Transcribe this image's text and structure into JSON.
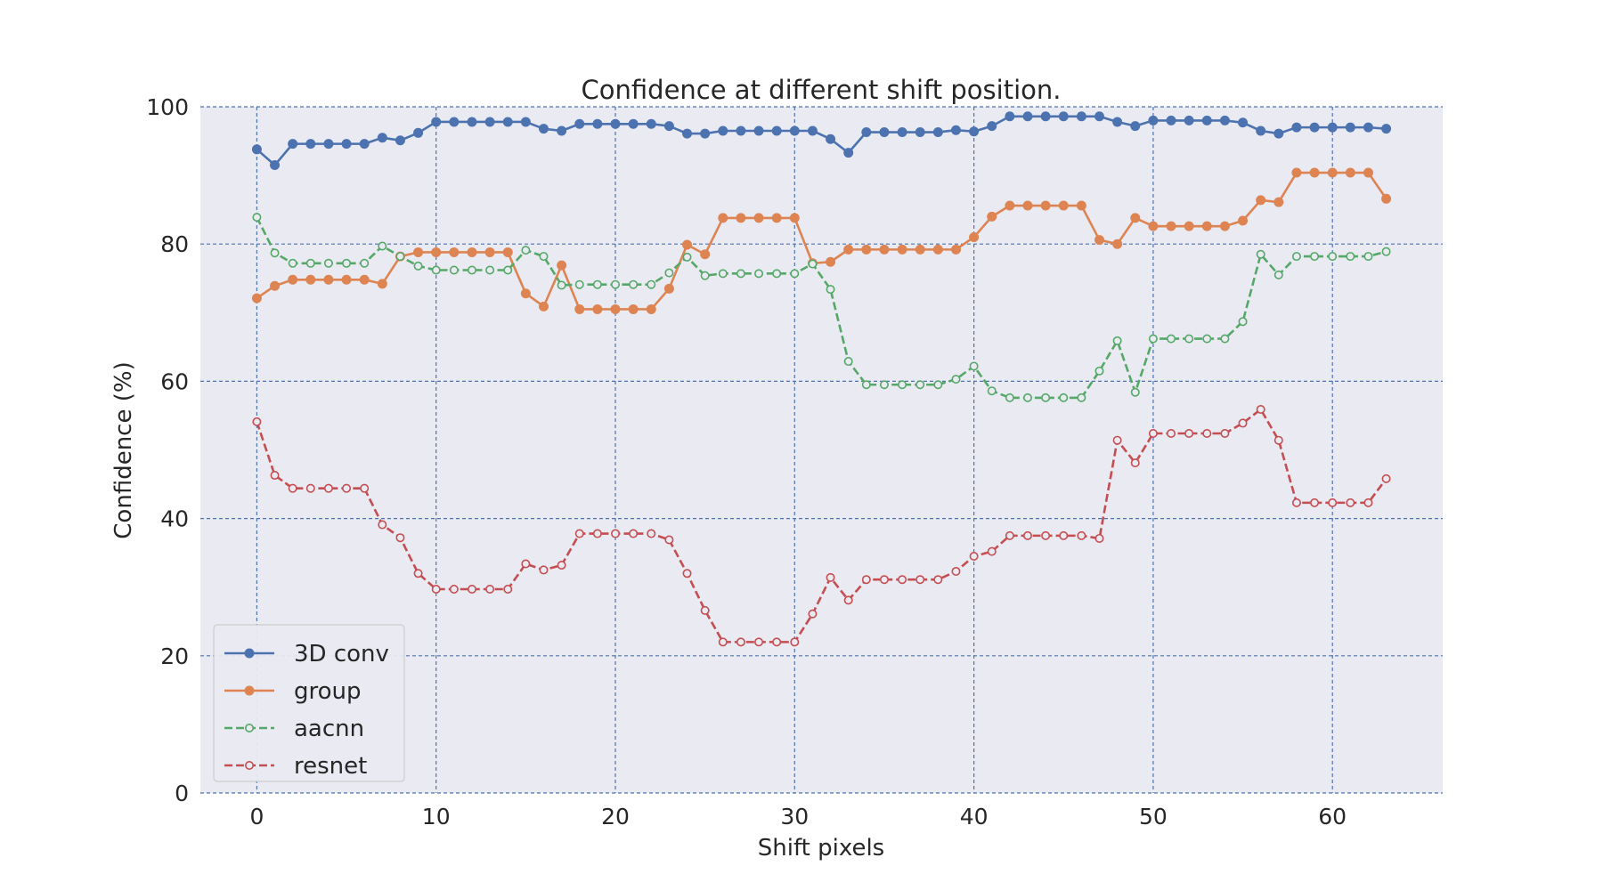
{
  "chart_data": {
    "type": "line",
    "title": "Confidence at different shift position.",
    "xlabel": "Shift pixels",
    "ylabel": "Confidence (%)",
    "xlim": [
      -3.15,
      66.15
    ],
    "ylim": [
      0,
      100
    ],
    "xticks": [
      "0",
      "10",
      "20",
      "30",
      "40",
      "50",
      "60"
    ],
    "yticks": [
      "0",
      "20",
      "40",
      "60",
      "80",
      "100"
    ],
    "grid": true,
    "legend_position": "lower-left",
    "background_color": "#eaeaf2",
    "grid_color": "#4c72b0",
    "series": [
      {
        "name": "3D conv",
        "color": "#4c72b0",
        "line_style": "solid",
        "marker": "filled-circle",
        "values": [
          93.8,
          91.5,
          94.6,
          94.6,
          94.6,
          94.6,
          94.6,
          95.5,
          95.1,
          96.2,
          97.8,
          97.8,
          97.8,
          97.8,
          97.8,
          97.8,
          96.8,
          96.5,
          97.5,
          97.5,
          97.5,
          97.5,
          97.5,
          97.2,
          96.1,
          96.1,
          96.5,
          96.5,
          96.5,
          96.5,
          96.5,
          96.5,
          95.3,
          93.3,
          96.3,
          96.3,
          96.3,
          96.3,
          96.3,
          96.6,
          96.4,
          97.2,
          98.6,
          98.6,
          98.6,
          98.6,
          98.6,
          98.6,
          97.8,
          97.2,
          98.0,
          98.0,
          98.0,
          98.0,
          98.0,
          97.7,
          96.5,
          96.1,
          97.0,
          97.0,
          97.0,
          97.0,
          97.0,
          96.8
        ]
      },
      {
        "name": "group",
        "color": "#dd8452",
        "line_style": "solid",
        "marker": "filled-circle",
        "values": [
          72.1,
          73.9,
          74.8,
          74.8,
          74.8,
          74.8,
          74.8,
          74.2,
          78.2,
          78.8,
          78.8,
          78.8,
          78.8,
          78.8,
          78.8,
          72.8,
          70.9,
          76.9,
          70.5,
          70.5,
          70.5,
          70.5,
          70.5,
          73.5,
          79.9,
          78.5,
          83.8,
          83.8,
          83.8,
          83.8,
          83.8,
          77.2,
          77.4,
          79.2,
          79.2,
          79.2,
          79.2,
          79.2,
          79.2,
          79.2,
          81.0,
          84.0,
          85.6,
          85.6,
          85.6,
          85.6,
          85.6,
          80.6,
          80.0,
          83.8,
          82.6,
          82.6,
          82.6,
          82.6,
          82.6,
          83.4,
          86.4,
          86.1,
          90.4,
          90.4,
          90.4,
          90.4,
          90.4,
          86.6
        ]
      },
      {
        "name": "aacnn",
        "color": "#55a868",
        "line_style": "dashed",
        "marker": "open-circle",
        "values": [
          83.9,
          78.7,
          77.2,
          77.2,
          77.2,
          77.2,
          77.2,
          79.7,
          78.2,
          76.8,
          76.2,
          76.2,
          76.2,
          76.2,
          76.2,
          79.1,
          78.2,
          74.0,
          74.1,
          74.1,
          74.1,
          74.1,
          74.1,
          75.8,
          78.1,
          75.4,
          75.7,
          75.7,
          75.7,
          75.7,
          75.7,
          77.1,
          73.4,
          62.9,
          59.5,
          59.5,
          59.5,
          59.5,
          59.5,
          60.3,
          62.2,
          58.6,
          57.6,
          57.6,
          57.6,
          57.6,
          57.6,
          61.5,
          65.9,
          58.4,
          66.2,
          66.2,
          66.2,
          66.2,
          66.2,
          68.7,
          78.5,
          75.5,
          78.2,
          78.2,
          78.2,
          78.2,
          78.2,
          78.9
        ]
      },
      {
        "name": "resnet",
        "color": "#c44e52",
        "line_style": "dashed",
        "marker": "open-circle",
        "values": [
          54.1,
          46.3,
          44.4,
          44.4,
          44.4,
          44.4,
          44.4,
          39.1,
          37.2,
          32.0,
          29.7,
          29.7,
          29.7,
          29.7,
          29.7,
          33.4,
          32.5,
          33.2,
          37.8,
          37.8,
          37.8,
          37.8,
          37.8,
          36.9,
          32.0,
          26.6,
          22.0,
          22.0,
          22.0,
          22.0,
          22.0,
          26.1,
          31.4,
          28.1,
          31.1,
          31.1,
          31.1,
          31.1,
          31.1,
          32.3,
          34.5,
          35.2,
          37.5,
          37.5,
          37.5,
          37.5,
          37.5,
          37.1,
          51.4,
          48.1,
          52.4,
          52.4,
          52.4,
          52.4,
          52.4,
          53.9,
          55.9,
          51.4,
          42.3,
          42.3,
          42.3,
          42.3,
          42.3,
          45.8
        ]
      }
    ]
  }
}
